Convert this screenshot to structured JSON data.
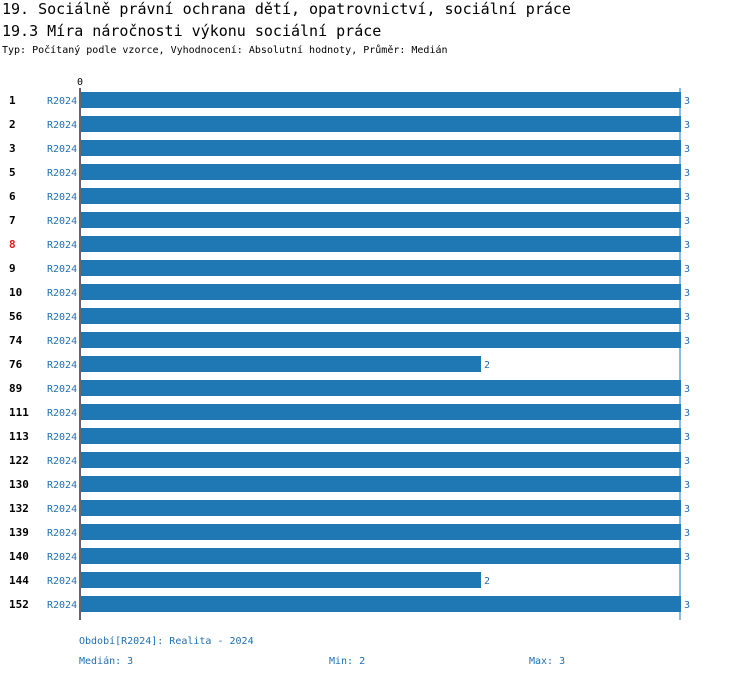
{
  "title": "19. Sociálně právní ochrana dětí, opatrovnictví, sociální práce",
  "subtitle": "19.3 Míra náročnosti výkonu sociální práce",
  "info": "Typ: Počítaný podle vzorce, Vyhodnocení: Absolutní hodnoty, Průměr: Medián",
  "colors": {
    "bar": "#1f77b4",
    "label_blue": "#1f6fb5",
    "highlight": "#e41a1c"
  },
  "chart_data": {
    "type": "bar",
    "orientation": "horizontal",
    "xlim": [
      0,
      3
    ],
    "axis_tick_label": "0",
    "series_label": "R2024",
    "highlight_category": "8",
    "categories": [
      "1",
      "2",
      "3",
      "5",
      "6",
      "7",
      "8",
      "9",
      "10",
      "56",
      "74",
      "76",
      "89",
      "111",
      "113",
      "122",
      "130",
      "132",
      "139",
      "140",
      "144",
      "152"
    ],
    "values": [
      3,
      3,
      3,
      3,
      3,
      3,
      3,
      3,
      3,
      3,
      3,
      2,
      3,
      3,
      3,
      3,
      3,
      3,
      3,
      3,
      2,
      3
    ]
  },
  "footer": {
    "period": "Období[R2024]: Realita - 2024",
    "median": "Medián: 3",
    "min": "Min: 2",
    "max": "Max: 3"
  }
}
